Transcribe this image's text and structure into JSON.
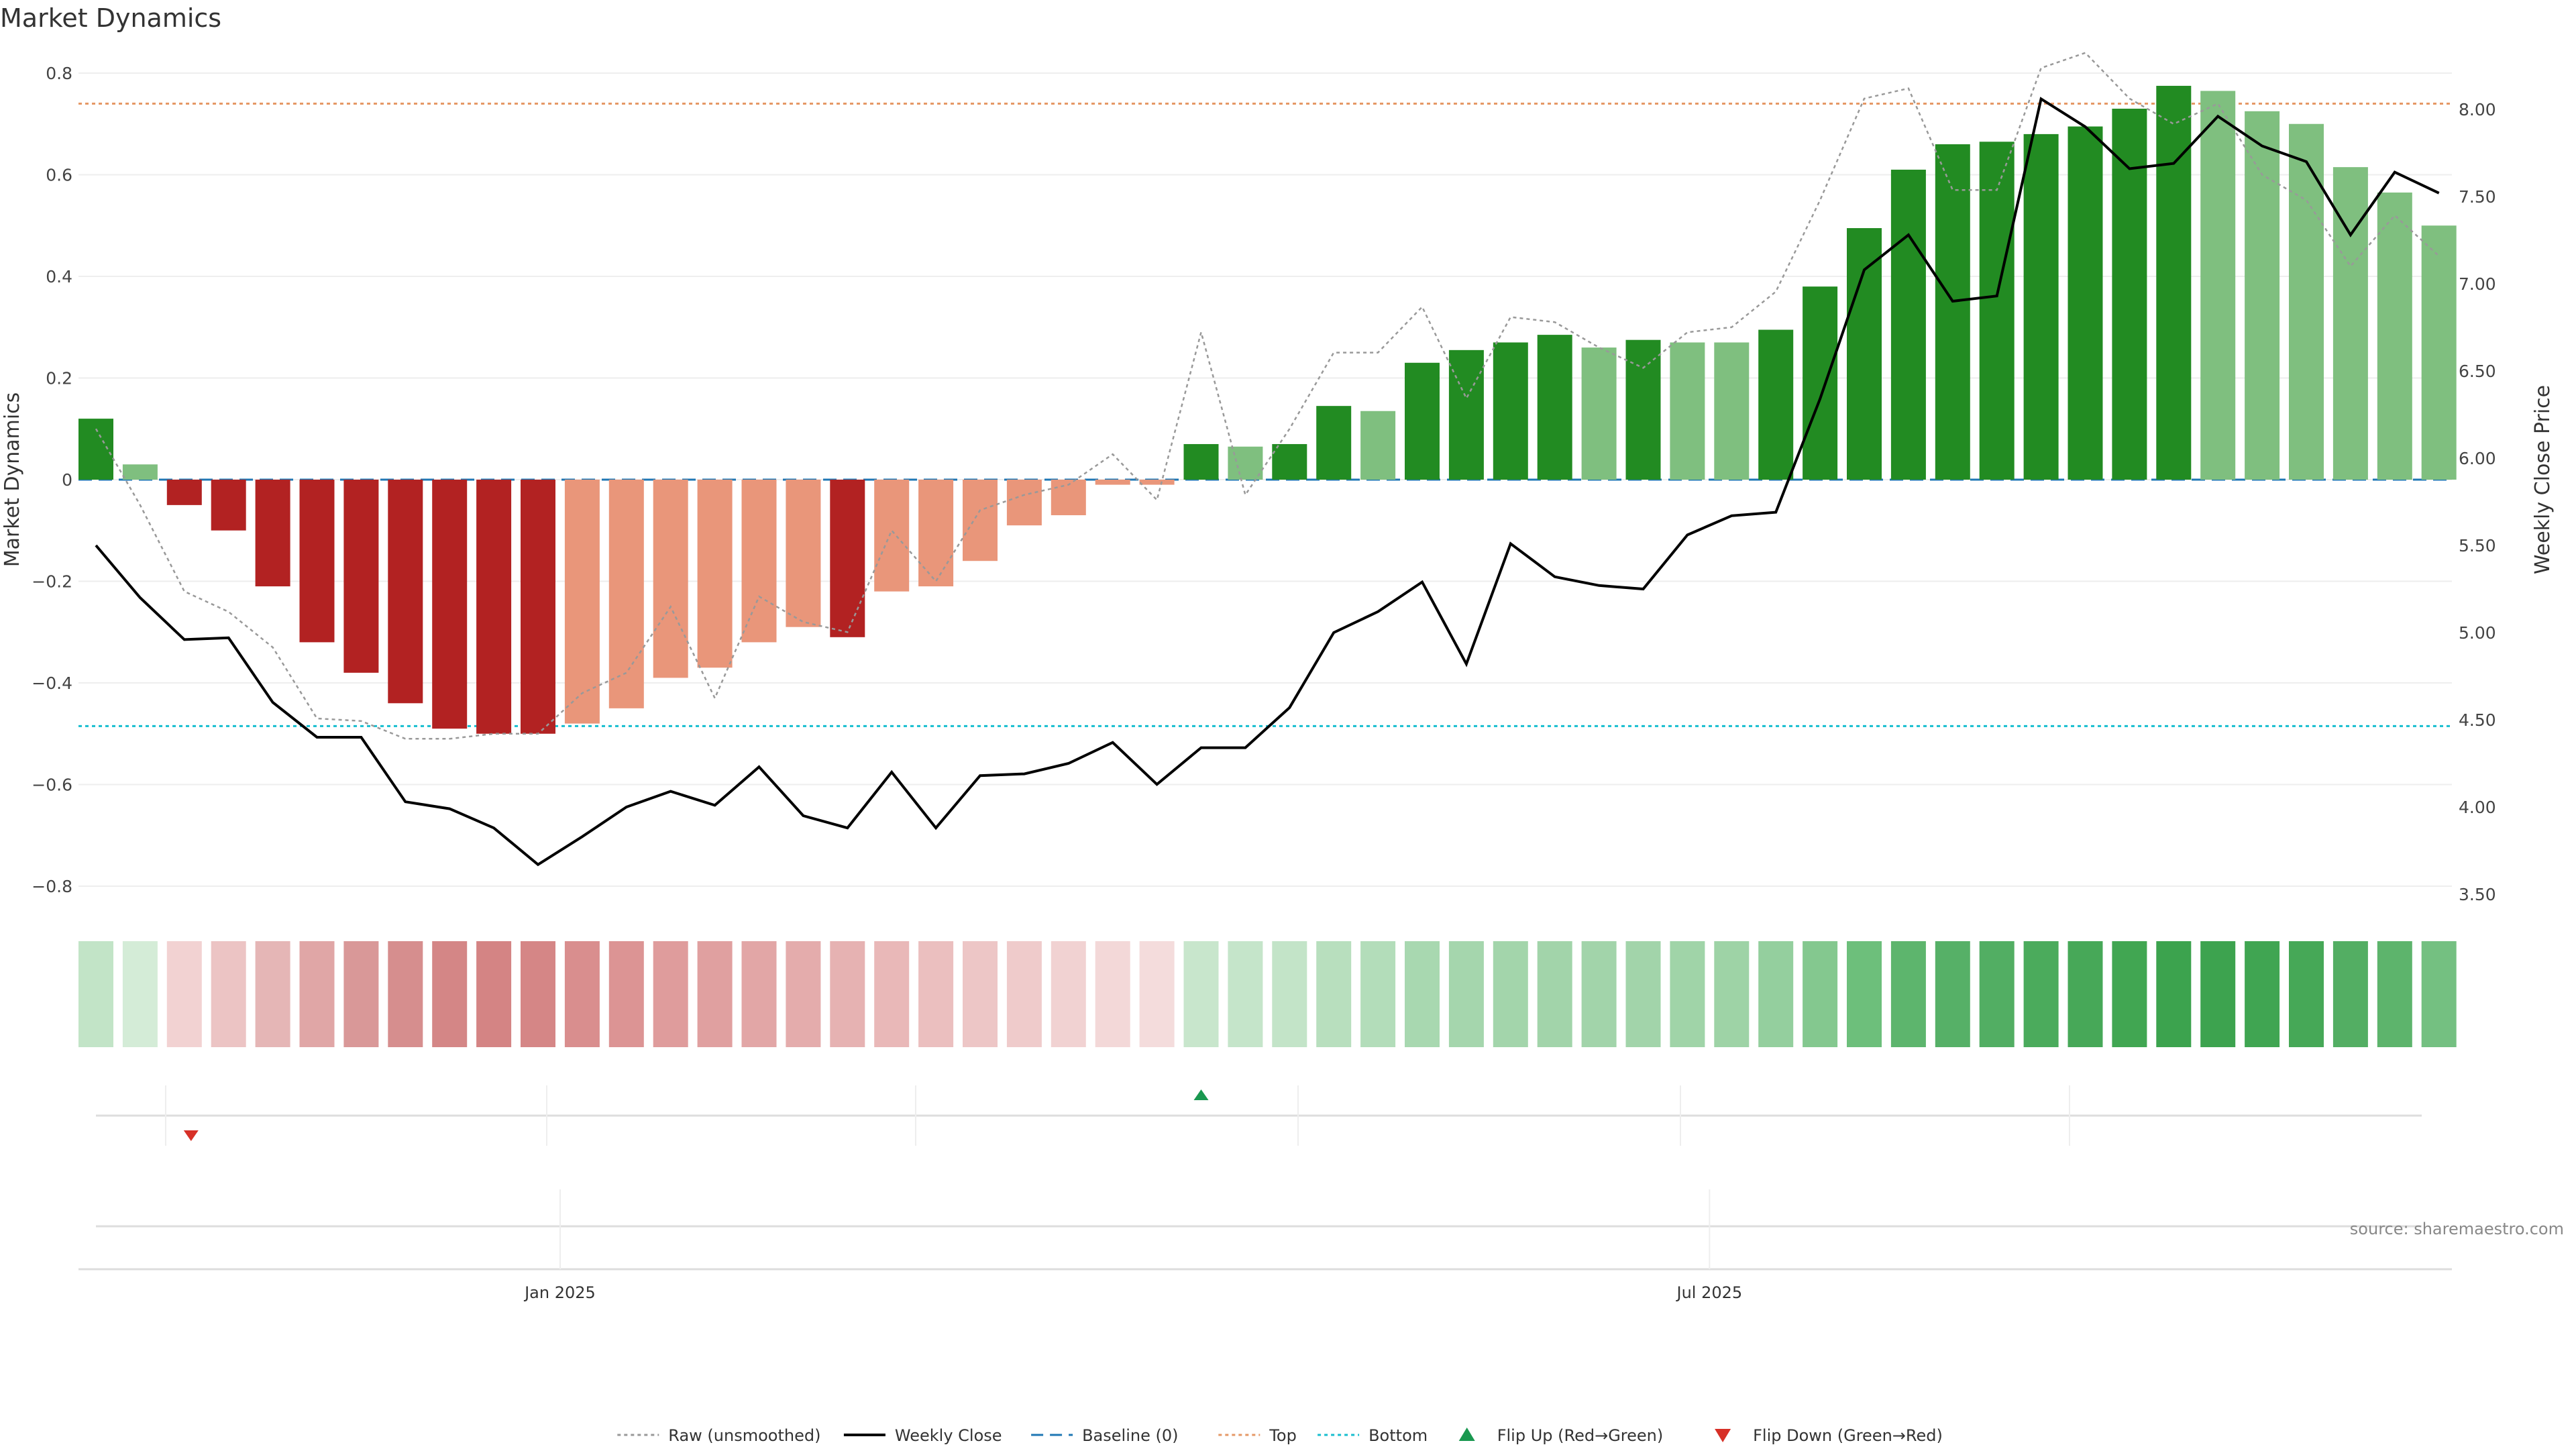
{
  "title": "Market Dynamics",
  "source": "source: sharemaestro.com",
  "chart_data": {
    "type": "bar",
    "title": "Market Dynamics",
    "ylabel": "Market Dynamics",
    "y2label": "Weekly Close Price",
    "ylim": [
      -0.84,
      0.8
    ],
    "y2lim": [
      3.4,
      8.2
    ],
    "y_ticks": [
      0.8,
      0.6,
      0.4,
      0.2,
      0,
      -0.2,
      -0.4,
      -0.6,
      -0.8
    ],
    "y_tick_labels": [
      "0.8",
      "0.6",
      "0.4",
      "0.2",
      "0",
      "−0.2",
      "−0.4",
      "−0.6",
      "−0.8"
    ],
    "y2_ticks": [
      8.0,
      7.5,
      7.0,
      6.5,
      6.0,
      5.5,
      5.0,
      4.5,
      4.0,
      3.5
    ],
    "y2_tick_labels": [
      "8.00",
      "7.50",
      "7.00",
      "6.50",
      "6.00",
      "5.50",
      "5.00",
      "4.50",
      "4.00",
      "3.50"
    ],
    "x_tick_labels": [
      {
        "index": 10.5,
        "label": "Jan 2025"
      },
      {
        "index": 36.5,
        "label": "Jul 2025"
      }
    ],
    "grid": true,
    "legend_position": "bottom",
    "series": [
      {
        "name": "Market Dynamics",
        "type": "bar",
        "values": [
          0.12,
          0.03,
          -0.05,
          -0.1,
          -0.21,
          -0.32,
          -0.38,
          -0.44,
          -0.49,
          -0.5,
          -0.5,
          -0.48,
          -0.45,
          -0.39,
          -0.37,
          -0.32,
          -0.29,
          -0.31,
          -0.22,
          -0.21,
          -0.16,
          -0.09,
          -0.07,
          -0.01,
          -0.01,
          0.07,
          0.065,
          0.07,
          0.145,
          0.135,
          0.23,
          0.255,
          0.27,
          0.285,
          0.26,
          0.275,
          0.27,
          0.27,
          0.295,
          0.38,
          0.495,
          0.61,
          0.66,
          0.665,
          0.68,
          0.695,
          0.73,
          0.775,
          0.765,
          0.725,
          0.7,
          0.615,
          0.565,
          0.5
        ],
        "colors": [
          "#228B22",
          "#7FBF7F",
          "#B22222",
          "#B22222",
          "#B22222",
          "#B22222",
          "#B22222",
          "#B22222",
          "#B22222",
          "#B22222",
          "#B22222",
          "#E9967A",
          "#E9967A",
          "#E9967A",
          "#E9967A",
          "#E9967A",
          "#E9967A",
          "#B22222",
          "#E9967A",
          "#E9967A",
          "#E9967A",
          "#E9967A",
          "#E9967A",
          "#E9967A",
          "#E9967A",
          "#228B22",
          "#7FBF7F",
          "#228B22",
          "#228B22",
          "#7FBF7F",
          "#228B22",
          "#228B22",
          "#228B22",
          "#228B22",
          "#7FBF7F",
          "#228B22",
          "#7FBF7F",
          "#7FBF7F",
          "#228B22",
          "#228B22",
          "#228B22",
          "#228B22",
          "#228B22",
          "#228B22",
          "#228B22",
          "#228B22",
          "#228B22",
          "#228B22",
          "#7FBF7F",
          "#7FBF7F",
          "#7FBF7F",
          "#7FBF7F",
          "#7FBF7F",
          "#7FBF7F"
        ]
      },
      {
        "name": "Raw (unsmoothed)",
        "type": "line",
        "axis": "left",
        "values": [
          0.1,
          -0.05,
          -0.22,
          -0.26,
          -0.33,
          -0.47,
          -0.475,
          -0.51,
          -0.51,
          -0.5,
          -0.5,
          -0.42,
          -0.38,
          -0.25,
          -0.43,
          -0.23,
          -0.28,
          -0.3,
          -0.1,
          -0.2,
          -0.06,
          -0.03,
          -0.01,
          0.05,
          -0.04,
          0.29,
          -0.03,
          0.1,
          0.25,
          0.25,
          0.34,
          0.16,
          0.32,
          0.31,
          0.26,
          0.22,
          0.29,
          0.3,
          0.37,
          0.55,
          0.75,
          0.77,
          0.57,
          0.57,
          0.81,
          0.84,
          0.75,
          0.7,
          0.74,
          0.6,
          0.55,
          0.42,
          0.52,
          0.44
        ]
      },
      {
        "name": "Weekly Close",
        "type": "line",
        "axis": "right",
        "values": [
          5.5,
          5.2,
          4.96,
          4.97,
          4.6,
          4.4,
          4.4,
          4.03,
          3.99,
          3.88,
          3.67,
          3.83,
          4.0,
          4.09,
          4.01,
          4.23,
          3.95,
          3.88,
          4.2,
          3.88,
          4.18,
          4.19,
          4.25,
          4.37,
          4.13,
          4.34,
          4.34,
          4.57,
          5.0,
          5.12,
          5.29,
          4.82,
          5.51,
          5.32,
          5.27,
          5.25,
          5.56,
          5.67,
          5.69,
          6.34,
          7.08,
          7.28,
          6.9,
          6.93,
          8.06,
          7.9,
          7.66,
          7.69,
          7.96,
          7.79,
          7.7,
          7.28,
          7.64,
          7.52
        ]
      }
    ],
    "reference_lines": [
      {
        "name": "Baseline (0)",
        "value": 0,
        "color": "#1f77b4"
      },
      {
        "name": "Top",
        "value": 0.74,
        "color": "#e59866"
      },
      {
        "name": "Bottom",
        "value": -0.485,
        "color": "#17becf"
      }
    ],
    "strip_colors": [
      "#c2e4c7",
      "#d4ecd7",
      "#f2d2d2",
      "#ecc4c4",
      "#e5b6b6",
      "#e0a6a6",
      "#d99898",
      "#d68e8e",
      "#d48686",
      "#d48484",
      "#d58686",
      "#d98e8e",
      "#dc9494",
      "#df9c9c",
      "#e0a0a0",
      "#e2a6a6",
      "#e4acac",
      "#e6b2b2",
      "#e9b8b8",
      "#ebbfbf",
      "#edc6c6",
      "#efcbcb",
      "#f1d2d2",
      "#f3d8d8",
      "#f4dcdc",
      "#c8e6cc",
      "#c5e5ca",
      "#c3e4c8",
      "#b8dfbe",
      "#b3ddba",
      "#a8d8b0",
      "#a5d6ad",
      "#a3d5ab",
      "#a2d4aa",
      "#a2d4aa",
      "#a2d4aa",
      "#a0d4a8",
      "#9ed3a6",
      "#94cf9e",
      "#84c88f",
      "#6dbf7b",
      "#5db56d",
      "#56b067",
      "#52ae63",
      "#4bab5c",
      "#47a858",
      "#41a652",
      "#3ca34e",
      "#3da34f",
      "#40a552",
      "#46a857",
      "#53ae63",
      "#5db46c",
      "#74c081"
    ],
    "flip_up": [
      {
        "index": 25
      }
    ],
    "flip_down": [
      {
        "index": 2
      }
    ],
    "legend": [
      {
        "label": "Raw (unsmoothed)",
        "style": "dotted",
        "color": "#999999"
      },
      {
        "label": "Weekly Close",
        "style": "solid",
        "color": "#000000"
      },
      {
        "label": "Baseline (0)",
        "style": "dashed",
        "color": "#1f77b4"
      },
      {
        "label": "Top",
        "style": "dotted",
        "color": "#e59866"
      },
      {
        "label": "Bottom",
        "style": "dotted",
        "color": "#17becf"
      },
      {
        "label": "Flip Up (Red→Green)",
        "style": "triangle-up",
        "color": "#1a9850"
      },
      {
        "label": "Flip Down (Green→Red)",
        "style": "triangle-down",
        "color": "#d73027"
      }
    ]
  }
}
